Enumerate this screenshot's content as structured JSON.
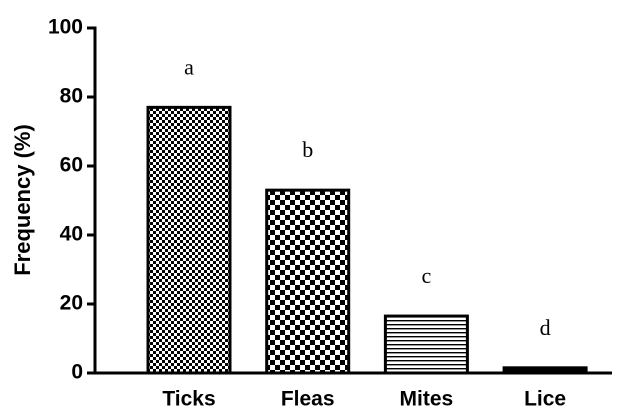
{
  "chart_data": {
    "type": "bar",
    "y_label": "Frequency (%)",
    "categories": [
      "Ticks",
      "Fleas",
      "Mites",
      "Lice"
    ],
    "values": [
      77,
      53,
      16.5,
      1.5
    ],
    "annotations": [
      "a",
      "b",
      "c",
      "d"
    ],
    "color": "#000000",
    "ylim": [
      0,
      100
    ],
    "yticks": [
      0,
      20,
      40,
      60,
      80,
      100
    ],
    "grid": false
  }
}
